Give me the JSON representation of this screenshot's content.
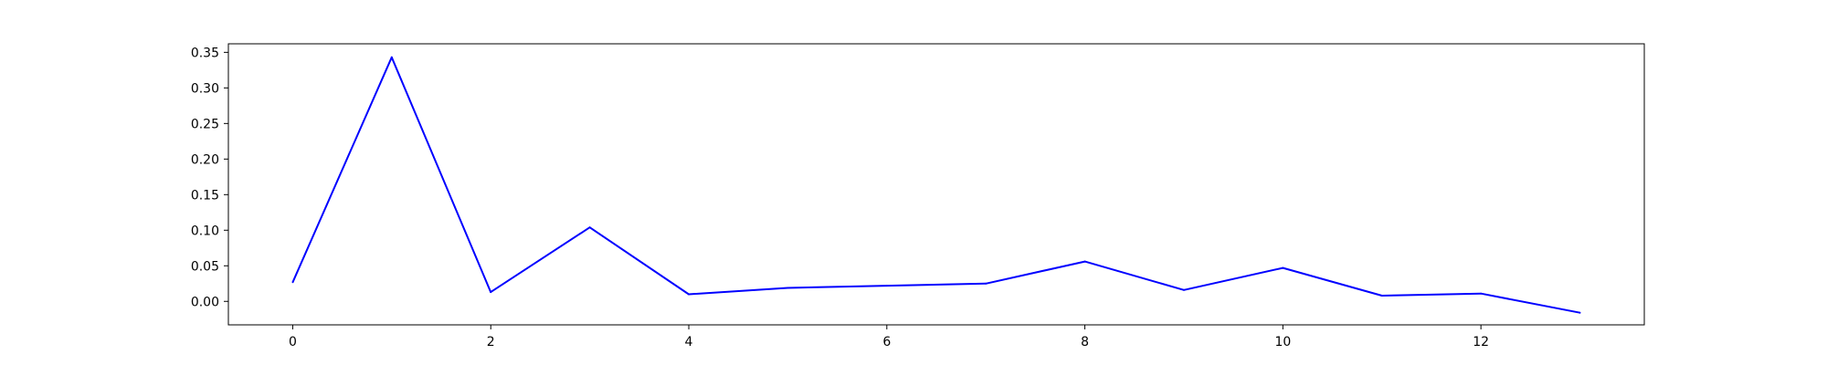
{
  "chart_data": {
    "type": "line",
    "title": "",
    "xlabel": "",
    "ylabel": "",
    "xlim": [
      -0.65,
      13.65
    ],
    "ylim": [
      -0.033,
      0.362
    ],
    "grid": false,
    "x_ticks": [
      0,
      2,
      4,
      6,
      8,
      10,
      12
    ],
    "x_tick_labels": [
      "0",
      "2",
      "4",
      "6",
      "8",
      "10",
      "12"
    ],
    "y_ticks": [
      0.0,
      0.05,
      0.1,
      0.15,
      0.2,
      0.25,
      0.3,
      0.35
    ],
    "y_tick_labels": [
      "0.00",
      "0.05",
      "0.10",
      "0.15",
      "0.20",
      "0.25",
      "0.30",
      "0.35"
    ],
    "series": [
      {
        "color": "#0000ff",
        "x": [
          0,
          1,
          2,
          3,
          4,
          5,
          6,
          7,
          8,
          9,
          10,
          11,
          12,
          13
        ],
        "values": [
          0.027,
          0.343,
          0.013,
          0.104,
          0.01,
          0.019,
          0.022,
          0.025,
          0.056,
          0.016,
          0.047,
          0.008,
          0.011,
          -0.016
        ]
      }
    ]
  }
}
